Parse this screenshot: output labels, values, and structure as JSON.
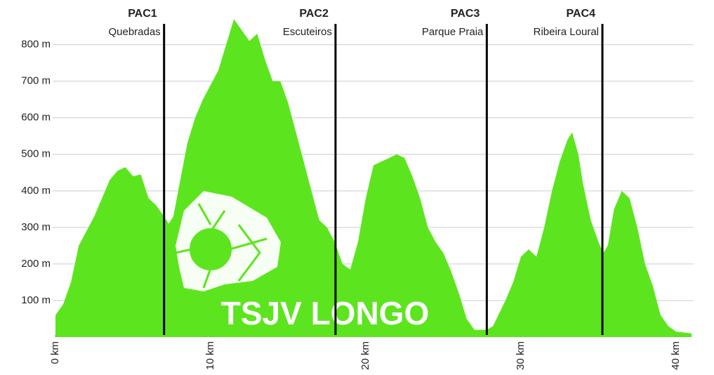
{
  "chart_data": {
    "type": "area",
    "color": "#5ce51e",
    "grid": true,
    "logo_text": "TSJV LONGO",
    "xlim": [
      0,
      41
    ],
    "ylim": [
      0,
      880
    ],
    "xticks": [
      {
        "value": 0,
        "label": "0 km"
      },
      {
        "value": 10,
        "label": "10 km"
      },
      {
        "value": 20,
        "label": "20 km"
      },
      {
        "value": 30,
        "label": "30 km"
      },
      {
        "value": 40,
        "label": "40 km"
      }
    ],
    "yticks": [
      {
        "value": 100,
        "label": "100 m"
      },
      {
        "value": 200,
        "label": "200 m"
      },
      {
        "value": 300,
        "label": "300 m"
      },
      {
        "value": 400,
        "label": "400 m"
      },
      {
        "value": 500,
        "label": "500 m"
      },
      {
        "value": 600,
        "label": "600 m"
      },
      {
        "value": 700,
        "label": "700 m"
      },
      {
        "value": 800,
        "label": "800 m"
      }
    ],
    "markers": [
      {
        "x": 7.0,
        "name": "PAC1",
        "place": "Quebradas"
      },
      {
        "x": 18.05,
        "name": "PAC2",
        "place": "Escuteiros"
      },
      {
        "x": 27.8,
        "name": "PAC3",
        "place": "Parque Praia"
      },
      {
        "x": 35.25,
        "name": "PAC4",
        "place": "Ribeira Loural"
      }
    ],
    "x": [
      0,
      0.5,
      1,
      1.5,
      2,
      2.5,
      3,
      3.5,
      4,
      4.5,
      5,
      5.5,
      6,
      6.5,
      7,
      7.3,
      7.6,
      8,
      8.5,
      9,
      9.5,
      10,
      10.5,
      11,
      11.5,
      12,
      12.5,
      13,
      13.5,
      14,
      14.5,
      15,
      15.5,
      16,
      16.5,
      17,
      17.5,
      18,
      18.5,
      19,
      19.5,
      20,
      20.5,
      21,
      21.5,
      22,
      22.5,
      23,
      23.5,
      24,
      24.5,
      25,
      25.5,
      26,
      26.5,
      27,
      27.8,
      28.2,
      29,
      29.5,
      30,
      30.5,
      31,
      31.5,
      32,
      32.5,
      33,
      33.3,
      33.7,
      34,
      34.5,
      35,
      35.3,
      35.6,
      36,
      36.5,
      37,
      37.5,
      38,
      38.5,
      39,
      39.5,
      40,
      41
    ],
    "values": [
      60,
      90,
      150,
      250,
      290,
      330,
      380,
      430,
      455,
      465,
      440,
      445,
      380,
      360,
      330,
      310,
      330,
      420,
      530,
      600,
      650,
      690,
      730,
      800,
      870,
      840,
      810,
      830,
      760,
      700,
      700,
      640,
      560,
      480,
      400,
      320,
      300,
      260,
      200,
      185,
      260,
      380,
      470,
      480,
      490,
      500,
      490,
      440,
      380,
      300,
      260,
      230,
      180,
      120,
      50,
      20,
      20,
      30,
      100,
      150,
      220,
      240,
      220,
      300,
      400,
      480,
      540,
      560,
      500,
      420,
      320,
      260,
      230,
      250,
      350,
      400,
      380,
      300,
      200,
      140,
      60,
      30,
      15,
      10
    ]
  }
}
